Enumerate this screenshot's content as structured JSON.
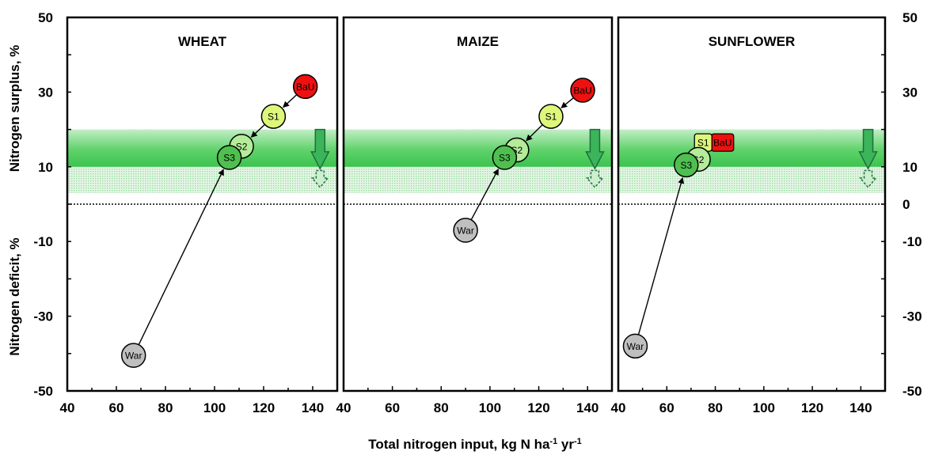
{
  "chart_data": {
    "type": "scatter",
    "xlabel": "Total nitrogen input, kg N ha",
    "xlabel_sup1": "-1",
    "xlabel_mid": " yr",
    "xlabel_sup2": "-1",
    "ylabel_upper": "Nitrogen surplus, %",
    "ylabel_lower": "Nitrogen deficit, %",
    "xlim": [
      40,
      150
    ],
    "ylim": [
      -50,
      50
    ],
    "xticks": [
      40,
      60,
      80,
      100,
      120,
      140
    ],
    "yticks_left": [
      -50,
      -30,
      -10,
      10,
      30,
      50
    ],
    "yticks_right": [
      -50,
      -30,
      -10,
      0,
      10,
      30,
      50
    ],
    "target_band": {
      "dense": [
        10,
        20
      ],
      "light": [
        3,
        10
      ]
    },
    "zero_line": 0,
    "colors": {
      "BaU": "#ee1111",
      "S1": "#ddf77a",
      "S2": "#b4ec9a",
      "S3": "#4fbf4f",
      "War": "#bfbfbf",
      "band_dense": "#44cc55",
      "band_light": "#cdeecf",
      "arrow": "#3cb45a"
    },
    "panels": [
      {
        "title": "WHEAT",
        "points": [
          {
            "label": "BaU",
            "x": 137,
            "y": 31.5
          },
          {
            "label": "S1",
            "x": 124,
            "y": 23.5
          },
          {
            "label": "S2",
            "x": 111,
            "y": 15.5
          },
          {
            "label": "S3",
            "x": 106,
            "y": 12.5
          },
          {
            "label": "War",
            "x": 67,
            "y": -40.5
          }
        ],
        "arrows": [
          [
            "BaU",
            "S1"
          ],
          [
            "S1",
            "S2"
          ],
          [
            "War",
            "S3"
          ]
        ],
        "down_arrow_x": 143
      },
      {
        "title": "MAIZE",
        "points": [
          {
            "label": "BaU",
            "x": 138,
            "y": 30.5
          },
          {
            "label": "S1",
            "x": 125,
            "y": 23.5
          },
          {
            "label": "S2",
            "x": 111,
            "y": 14.5
          },
          {
            "label": "S3",
            "x": 106,
            "y": 12.5
          },
          {
            "label": "War",
            "x": 90,
            "y": -7
          }
        ],
        "arrows": [
          [
            "BaU",
            "S1"
          ],
          [
            "S1",
            "S2"
          ],
          [
            "War",
            "S3"
          ]
        ],
        "down_arrow_x": 143
      },
      {
        "title": "SUNFLOWER",
        "points": [
          {
            "label": "S1",
            "x": 75,
            "y": 16.5,
            "shape": "box"
          },
          {
            "label": "BaU",
            "x": 83,
            "y": 16.5,
            "shape": "box"
          },
          {
            "label": "S2",
            "x": 73,
            "y": 12
          },
          {
            "label": "S3",
            "x": 68,
            "y": 10.5
          },
          {
            "label": "War",
            "x": 47,
            "y": -38
          }
        ],
        "arrows": [
          [
            "War",
            "S3"
          ]
        ],
        "down_arrow_x": 143
      }
    ]
  }
}
